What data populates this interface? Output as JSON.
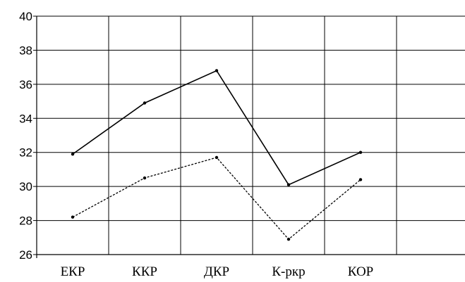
{
  "chart_data": {
    "type": "line",
    "title": "",
    "xlabel": "",
    "ylabel": "",
    "categories": [
      "ЕКР",
      "ККР",
      "ДКР",
      "К-ркр",
      "КОР"
    ],
    "ylim": [
      26,
      40
    ],
    "yticks": [
      "26",
      "28",
      "30",
      "32",
      "34",
      "36",
      "38",
      "40"
    ],
    "grid": true,
    "legend": "none",
    "series": [
      {
        "style": "solid",
        "color": "#000000",
        "values": [
          31.9,
          34.9,
          36.8,
          30.1,
          32.0
        ]
      },
      {
        "style": "dashed",
        "color": "#000000",
        "values": [
          28.2,
          30.5,
          31.7,
          26.9,
          30.4
        ]
      }
    ]
  }
}
